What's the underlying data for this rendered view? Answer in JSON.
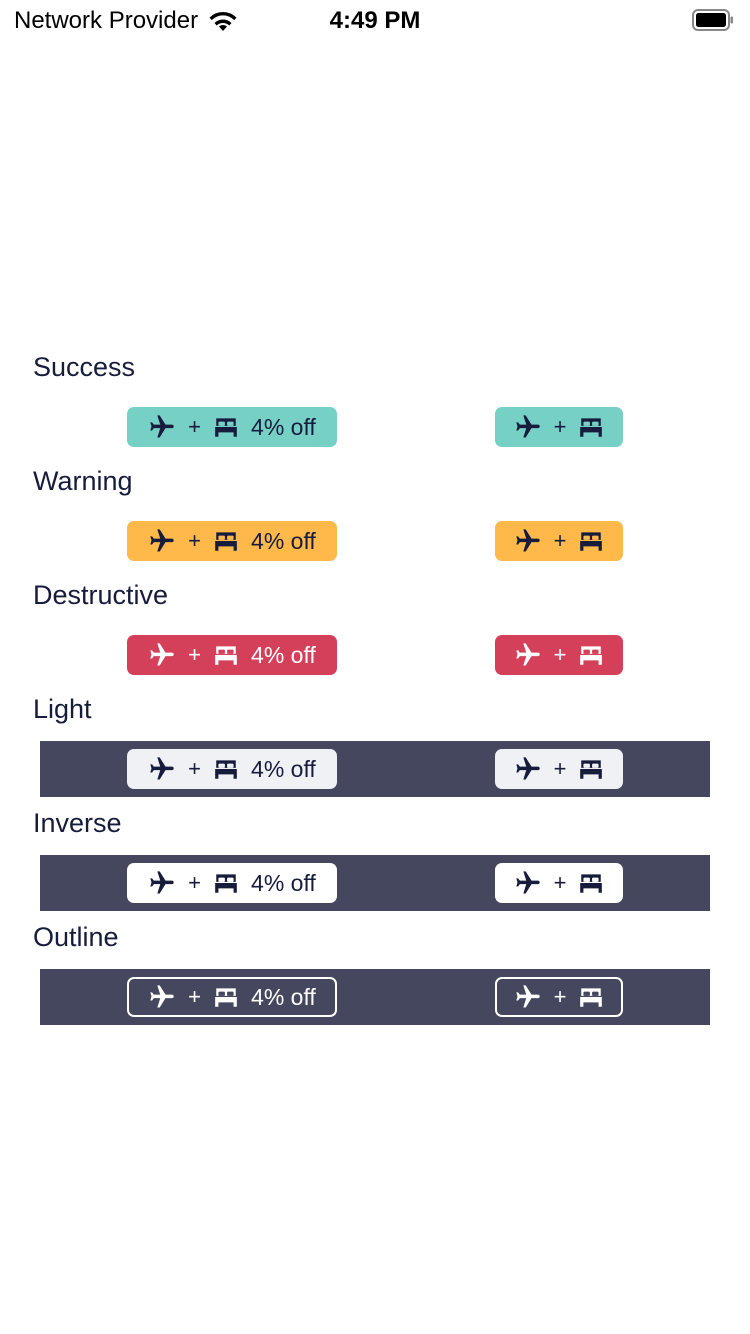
{
  "status_bar": {
    "carrier": "Network Provider",
    "time": "4:49 PM"
  },
  "colors": {
    "dark_band": "#45475f",
    "success": "#76d0c6",
    "warning": "#ffb84a",
    "destructive": "#d43f59",
    "light": "#f0f1f5",
    "inverse": "#ffffff",
    "navy_text": "#171b3c"
  },
  "icons": [
    "airplane-icon",
    "bed-icon"
  ],
  "sections": [
    {
      "label": "Success",
      "plus": "+",
      "discount": "4% off"
    },
    {
      "label": "Warning",
      "plus": "+",
      "discount": "4% off"
    },
    {
      "label": "Destructive",
      "plus": "+",
      "discount": "4% off"
    },
    {
      "label": "Light",
      "plus": "+",
      "discount": "4% off"
    },
    {
      "label": "Inverse",
      "plus": "+",
      "discount": "4% off"
    },
    {
      "label": "Outline",
      "plus": "+",
      "discount": "4% off"
    }
  ]
}
